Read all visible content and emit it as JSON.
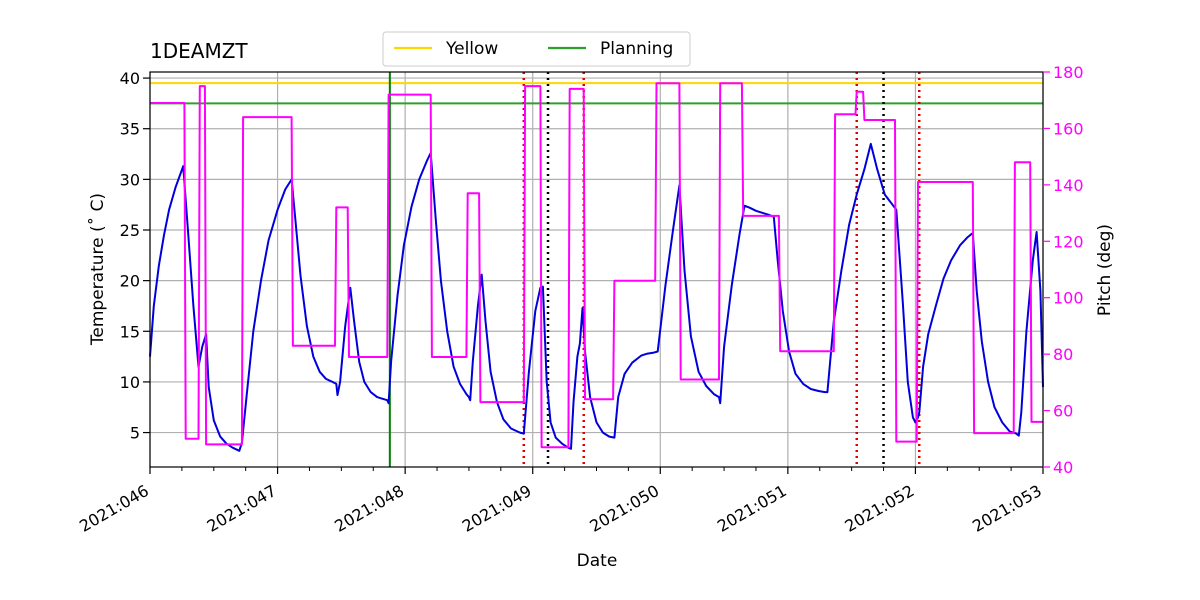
{
  "chart_data": {
    "type": "line",
    "title": "1DEAMZT",
    "xlabel": "Date",
    "ylabel": "Temperature ($^\\circ$C)",
    "ylabel_display": "Temperature (˚ C)",
    "y2label": "Pitch (deg)",
    "xlim": [
      46,
      53
    ],
    "ylim": [
      1.6,
      40.6
    ],
    "y2lim": [
      40,
      180
    ],
    "x_ticks": [
      46,
      47,
      48,
      49,
      50,
      51,
      52,
      53
    ],
    "x_tick_labels": [
      "2021:046",
      "2021:047",
      "2021:048",
      "2021:049",
      "2021:050",
      "2021:051",
      "2021:052",
      "2021:053"
    ],
    "y_ticks": [
      5,
      10,
      15,
      20,
      25,
      30,
      35,
      40
    ],
    "y_tick_labels": [
      "5",
      "10",
      "15",
      "20",
      "25",
      "30",
      "35",
      "40"
    ],
    "y2_ticks": [
      40,
      60,
      80,
      100,
      120,
      140,
      160,
      180
    ],
    "y2_tick_labels": [
      "40",
      "60",
      "80",
      "100",
      "120",
      "140",
      "160",
      "180"
    ],
    "grid": true,
    "legend": {
      "placement": "top-center",
      "entries": [
        {
          "name": "Yellow",
          "color": "#ffd700"
        },
        {
          "name": "Planning",
          "color": "#2ca02c"
        }
      ]
    },
    "limits": {
      "yellow": 39.5,
      "planning": 37.5
    },
    "vertical_lines": [
      {
        "x": 47.88,
        "color": "#008000",
        "style": "solid"
      },
      {
        "x": 48.93,
        "color": "#dd0000",
        "style": "dotted"
      },
      {
        "x": 49.12,
        "color": "#000000",
        "style": "dotted"
      },
      {
        "x": 49.4,
        "color": "#dd0000",
        "style": "dotted"
      },
      {
        "x": 51.54,
        "color": "#dd0000",
        "style": "dotted"
      },
      {
        "x": 51.75,
        "color": "#000000",
        "style": "dotted"
      },
      {
        "x": 52.03,
        "color": "#dd0000",
        "style": "dotted"
      }
    ],
    "series": [
      {
        "name": "",
        "axis": "left",
        "color": "#0000dd",
        "points": [
          [
            46.0,
            12.5
          ],
          [
            46.03,
            17.5
          ],
          [
            46.07,
            21.5
          ],
          [
            46.11,
            24.5
          ],
          [
            46.15,
            27.0
          ],
          [
            46.2,
            29.2
          ],
          [
            46.26,
            31.3
          ],
          [
            46.3,
            24.5
          ],
          [
            46.34,
            17.5
          ],
          [
            46.38,
            11.5
          ],
          [
            46.41,
            13.5
          ],
          [
            46.44,
            14.7
          ],
          [
            46.46,
            9.5
          ],
          [
            46.5,
            6.2
          ],
          [
            46.55,
            4.6
          ],
          [
            46.6,
            3.9
          ],
          [
            46.65,
            3.5
          ],
          [
            46.7,
            3.2
          ],
          [
            46.72,
            4.0
          ],
          [
            46.76,
            9.0
          ],
          [
            46.81,
            15.0
          ],
          [
            46.87,
            20.0
          ],
          [
            46.93,
            24.0
          ],
          [
            47.0,
            27.0
          ],
          [
            47.06,
            29.0
          ],
          [
            47.11,
            30.0
          ],
          [
            47.14,
            26.0
          ],
          [
            47.18,
            20.5
          ],
          [
            47.23,
            15.5
          ],
          [
            47.28,
            12.5
          ],
          [
            47.33,
            11.0
          ],
          [
            47.38,
            10.3
          ],
          [
            47.43,
            10.0
          ],
          [
            47.46,
            9.8
          ],
          [
            47.47,
            8.7
          ],
          [
            47.49,
            10.0
          ],
          [
            47.53,
            15.5
          ],
          [
            47.57,
            19.3
          ],
          [
            47.6,
            16.0
          ],
          [
            47.64,
            12.0
          ],
          [
            47.68,
            10.0
          ],
          [
            47.73,
            9.0
          ],
          [
            47.78,
            8.5
          ],
          [
            47.83,
            8.3
          ],
          [
            47.86,
            8.2
          ],
          [
            47.87,
            7.9
          ],
          [
            47.89,
            12.0
          ],
          [
            47.94,
            18.5
          ],
          [
            47.99,
            23.5
          ],
          [
            48.05,
            27.3
          ],
          [
            48.11,
            30.0
          ],
          [
            48.17,
            31.8
          ],
          [
            48.2,
            32.6
          ],
          [
            48.24,
            26.0
          ],
          [
            48.28,
            20.0
          ],
          [
            48.33,
            15.0
          ],
          [
            48.38,
            11.5
          ],
          [
            48.43,
            9.8
          ],
          [
            48.48,
            8.8
          ],
          [
            48.5,
            8.5
          ],
          [
            48.51,
            8.2
          ],
          [
            48.53,
            12.0
          ],
          [
            48.57,
            17.5
          ],
          [
            48.6,
            20.6
          ],
          [
            48.63,
            16.0
          ],
          [
            48.67,
            11.0
          ],
          [
            48.72,
            8.0
          ],
          [
            48.77,
            6.3
          ],
          [
            48.83,
            5.4
          ],
          [
            48.9,
            5.0
          ],
          [
            48.93,
            4.9
          ],
          [
            48.97,
            11.0
          ],
          [
            49.02,
            17.0
          ],
          [
            49.06,
            19.3
          ],
          [
            49.08,
            19.4
          ],
          [
            49.11,
            10.0
          ],
          [
            49.14,
            6.0
          ],
          [
            49.18,
            4.5
          ],
          [
            49.23,
            3.9
          ],
          [
            49.28,
            3.5
          ],
          [
            49.3,
            3.4
          ],
          [
            49.32,
            8.0
          ],
          [
            49.35,
            12.5
          ],
          [
            49.37,
            13.8
          ],
          [
            49.39,
            17.3
          ],
          [
            49.41,
            13.0
          ],
          [
            49.45,
            8.5
          ],
          [
            49.5,
            6.0
          ],
          [
            49.55,
            5.0
          ],
          [
            49.6,
            4.6
          ],
          [
            49.64,
            4.5
          ],
          [
            49.67,
            8.5
          ],
          [
            49.72,
            10.8
          ],
          [
            49.78,
            11.9
          ],
          [
            49.85,
            12.6
          ],
          [
            49.9,
            12.8
          ],
          [
            49.95,
            12.9
          ],
          [
            49.98,
            13.0
          ],
          [
            50.04,
            19.5
          ],
          [
            50.1,
            25.0
          ],
          [
            50.15,
            29.4
          ],
          [
            50.19,
            21.0
          ],
          [
            50.24,
            14.5
          ],
          [
            50.3,
            11.0
          ],
          [
            50.36,
            9.6
          ],
          [
            50.42,
            8.8
          ],
          [
            50.46,
            8.5
          ],
          [
            50.47,
            7.9
          ],
          [
            50.5,
            13.5
          ],
          [
            50.56,
            19.5
          ],
          [
            50.62,
            24.5
          ],
          [
            50.66,
            27.4
          ],
          [
            50.7,
            27.2
          ],
          [
            50.75,
            26.9
          ],
          [
            50.8,
            26.7
          ],
          [
            50.85,
            26.5
          ],
          [
            50.89,
            26.3
          ],
          [
            50.92,
            22.0
          ],
          [
            50.96,
            17.0
          ],
          [
            51.01,
            13.0
          ],
          [
            51.06,
            10.8
          ],
          [
            51.12,
            9.8
          ],
          [
            51.18,
            9.3
          ],
          [
            51.24,
            9.1
          ],
          [
            51.29,
            9.0
          ],
          [
            51.31,
            9.0
          ],
          [
            51.36,
            16.0
          ],
          [
            51.42,
            21.0
          ],
          [
            51.48,
            25.5
          ],
          [
            51.54,
            28.5
          ],
          [
            51.6,
            31.0
          ],
          [
            51.65,
            33.5
          ],
          [
            51.7,
            31.0
          ],
          [
            51.76,
            28.5
          ],
          [
            51.82,
            27.5
          ],
          [
            51.85,
            27.0
          ],
          [
            51.9,
            18.0
          ],
          [
            51.94,
            10.0
          ],
          [
            51.98,
            6.5
          ],
          [
            52.0,
            6.0
          ],
          [
            52.02,
            6.5
          ],
          [
            52.03,
            7.0
          ],
          [
            52.06,
            11.5
          ],
          [
            52.1,
            14.7
          ],
          [
            52.16,
            17.5
          ],
          [
            52.22,
            20.2
          ],
          [
            52.28,
            22.0
          ],
          [
            52.35,
            23.5
          ],
          [
            52.41,
            24.3
          ],
          [
            52.45,
            24.7
          ],
          [
            52.48,
            19.0
          ],
          [
            52.52,
            14.0
          ],
          [
            52.57,
            10.0
          ],
          [
            52.62,
            7.5
          ],
          [
            52.68,
            6.0
          ],
          [
            52.74,
            5.1
          ],
          [
            52.79,
            4.9
          ],
          [
            52.81,
            4.7
          ],
          [
            52.83,
            7.0
          ],
          [
            52.87,
            15.0
          ],
          [
            52.92,
            22.0
          ],
          [
            52.95,
            24.8
          ],
          [
            52.98,
            19.0
          ],
          [
            53.0,
            9.5
          ]
        ]
      },
      {
        "name": "",
        "axis": "right",
        "color": "#ff00ff",
        "points": [
          [
            46.0,
            169
          ],
          [
            46.27,
            169
          ],
          [
            46.28,
            50
          ],
          [
            46.38,
            50
          ],
          [
            46.39,
            175
          ],
          [
            46.43,
            175
          ],
          [
            46.44,
            48
          ],
          [
            46.72,
            48
          ],
          [
            46.73,
            164
          ],
          [
            47.11,
            164
          ],
          [
            47.12,
            83
          ],
          [
            47.45,
            83
          ],
          [
            47.46,
            132
          ],
          [
            47.55,
            132
          ],
          [
            47.56,
            79
          ],
          [
            47.86,
            79
          ],
          [
            47.87,
            172
          ],
          [
            48.2,
            172
          ],
          [
            48.21,
            79
          ],
          [
            48.48,
            79
          ],
          [
            48.49,
            137
          ],
          [
            48.58,
            137
          ],
          [
            48.59,
            63
          ],
          [
            48.93,
            63
          ],
          [
            48.94,
            175
          ],
          [
            49.06,
            175
          ],
          [
            49.07,
            47
          ],
          [
            49.28,
            47
          ],
          [
            49.29,
            174
          ],
          [
            49.4,
            174
          ],
          [
            49.41,
            64
          ],
          [
            49.63,
            64
          ],
          [
            49.64,
            106
          ],
          [
            49.96,
            106
          ],
          [
            49.97,
            176
          ],
          [
            50.15,
            176
          ],
          [
            50.16,
            71
          ],
          [
            50.46,
            71
          ],
          [
            50.47,
            176
          ],
          [
            50.64,
            176
          ],
          [
            50.65,
            129
          ],
          [
            50.93,
            129
          ],
          [
            50.94,
            81
          ],
          [
            51.36,
            81
          ],
          [
            51.37,
            165
          ],
          [
            51.53,
            165
          ],
          [
            51.54,
            173
          ],
          [
            51.59,
            173
          ],
          [
            51.6,
            163
          ],
          [
            51.84,
            163
          ],
          [
            51.85,
            49
          ],
          [
            52.01,
            49
          ],
          [
            52.02,
            141
          ],
          [
            52.45,
            141
          ],
          [
            52.46,
            52
          ],
          [
            52.77,
            52
          ],
          [
            52.78,
            148
          ],
          [
            52.9,
            148
          ],
          [
            52.91,
            56
          ],
          [
            53.0,
            56
          ]
        ]
      }
    ]
  }
}
